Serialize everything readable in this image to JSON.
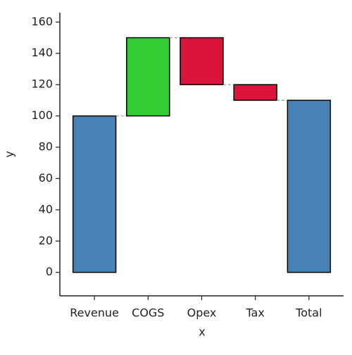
{
  "chart_data": {
    "type": "waterfall",
    "categories": [
      "Revenue",
      "COGS",
      "Opex",
      "Tax",
      "Total"
    ],
    "values": [
      100,
      50,
      -30,
      -10,
      110
    ],
    "measure": [
      "absolute",
      "relative",
      "relative",
      "relative",
      "total"
    ],
    "colors": [
      "#4682b4",
      "#32cd32",
      "#dc143c",
      "#dc143c",
      "#4682b4"
    ],
    "xlabel": "x",
    "ylabel": "y",
    "ylim": [
      -15,
      166
    ],
    "yticks": [
      0,
      20,
      40,
      60,
      80,
      100,
      120,
      140,
      160
    ]
  }
}
